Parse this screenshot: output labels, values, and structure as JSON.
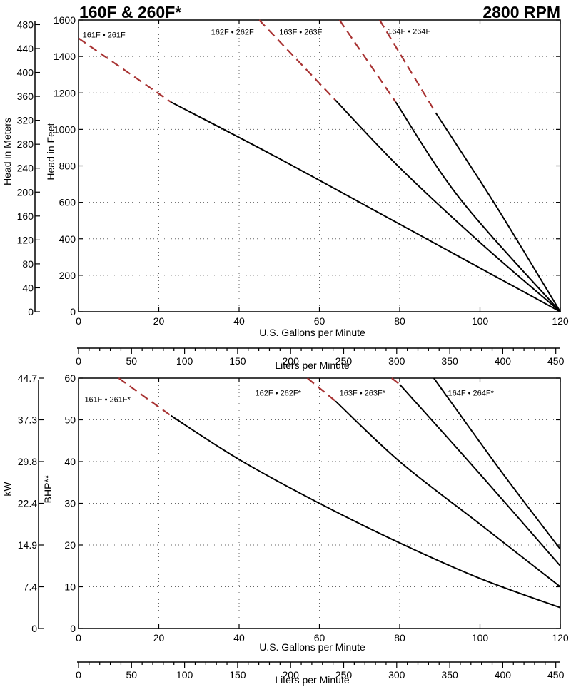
{
  "title_left": "160F & 260F*",
  "title_right": "2800 RPM",
  "chart_data": [
    {
      "type": "line",
      "id": "head",
      "xlabel": "U.S. Gallons per Minute",
      "xlim": [
        0,
        120
      ],
      "xticks": [
        0,
        20,
        40,
        60,
        80,
        100,
        120
      ],
      "ylabel": "Head in Feet",
      "ylim": [
        0,
        1600
      ],
      "yticks": [
        0,
        200,
        400,
        600,
        800,
        1000,
        1200,
        1400,
        1600
      ],
      "secondary_y": {
        "label": "Head in Meters",
        "tick_labels": [
          "0",
          "40",
          "80",
          "120",
          "160",
          "200",
          "240",
          "280",
          "320",
          "360",
          "400",
          "440",
          "480"
        ],
        "conversion_to_feet": 3.28084
      },
      "secondary_x": {
        "label": "Liters per Minute",
        "ticks": [
          0,
          50,
          100,
          150,
          200,
          250,
          300,
          350,
          400,
          450
        ],
        "minor_step": 10,
        "conversion_to_gpm": 3.78541
      },
      "dashed_color": "#a83232",
      "solid_color": "#000000",
      "grid": true,
      "series": [
        {
          "name": "161F • 261F",
          "dashed": [
            [
              0,
              1500
            ],
            [
              23,
              1150
            ]
          ],
          "solid": [
            [
              23,
              1150
            ],
            [
              50,
              840
            ],
            [
              80,
              480
            ],
            [
              120,
              0
            ]
          ],
          "label_at": [
            1,
            1520
          ]
        },
        {
          "name": "162F • 262F",
          "dashed": [
            [
              45,
              1600
            ],
            [
              64,
              1160
            ]
          ],
          "solid": [
            [
              64,
              1160
            ],
            [
              80,
              790
            ],
            [
              100,
              380
            ],
            [
              120,
              0
            ]
          ],
          "label_at": [
            33,
            1535
          ]
        },
        {
          "name": "163F • 263F",
          "dashed": [
            [
              65,
              1600
            ],
            [
              79,
              1150
            ]
          ],
          "solid": [
            [
              79,
              1150
            ],
            [
              95,
              620
            ],
            [
              120,
              0
            ]
          ],
          "label_at": [
            50,
            1535
          ]
        },
        {
          "name": "164F • 264F",
          "dashed": [
            [
              75,
              1600
            ],
            [
              89,
              1090
            ]
          ],
          "solid": [
            [
              89,
              1090
            ],
            [
              104,
              580
            ],
            [
              120,
              0
            ]
          ],
          "label_at": [
            77,
            1540
          ]
        }
      ]
    },
    {
      "type": "line",
      "id": "power",
      "xlabel": "U.S. Gallons per Minute",
      "xlim": [
        0,
        120
      ],
      "xticks": [
        0,
        20,
        40,
        60,
        80,
        100,
        120
      ],
      "ylabel": "BHP**",
      "ylim": [
        0,
        60
      ],
      "yticks": [
        0,
        10,
        20,
        30,
        40,
        50,
        60
      ],
      "secondary_y": {
        "label": "kW",
        "tick_labels": [
          "0",
          "7.4",
          "14.9",
          "22.4",
          "29.8",
          "37.3",
          "44.7"
        ]
      },
      "secondary_x": {
        "label": "Liters per Minute",
        "ticks": [
          0,
          50,
          100,
          150,
          200,
          250,
          300,
          350,
          400,
          450
        ],
        "minor_step": 10,
        "conversion_to_gpm": 3.78541
      },
      "dashed_color": "#a83232",
      "solid_color": "#000000",
      "grid": true,
      "series": [
        {
          "name": "161F • 261F*",
          "dashed": [
            [
              10,
              60
            ],
            [
              23,
              51
            ]
          ],
          "solid": [
            [
              23,
              51
            ],
            [
              40,
              40.5
            ],
            [
              60,
              30
            ],
            [
              80,
              20.5
            ],
            [
              100,
              12
            ],
            [
              120,
              5
            ]
          ],
          "label_at": [
            1.5,
            55
          ]
        },
        {
          "name": "162F • 262F*",
          "dashed": [
            [
              57,
              60
            ],
            [
              64,
              54.5
            ]
          ],
          "solid": [
            [
              64,
              54.5
            ],
            [
              80,
              40
            ],
            [
              100,
              25
            ],
            [
              120,
              10
            ]
          ],
          "label_at": [
            44,
            56.5
          ]
        },
        {
          "name": "163F • 263F*",
          "dashed": [
            [
              78,
              60
            ],
            [
              80,
              58.5
            ]
          ],
          "solid": [
            [
              80,
              58.5
            ],
            [
              100,
              37
            ],
            [
              120,
              15
            ]
          ],
          "label_at": [
            65,
            56.5
          ]
        },
        {
          "name": "164F • 264F*",
          "solid": [
            [
              88.5,
              60
            ],
            [
              105,
              38
            ],
            [
              120,
              19
            ]
          ],
          "label_at": [
            92,
            56.5
          ]
        }
      ]
    }
  ]
}
